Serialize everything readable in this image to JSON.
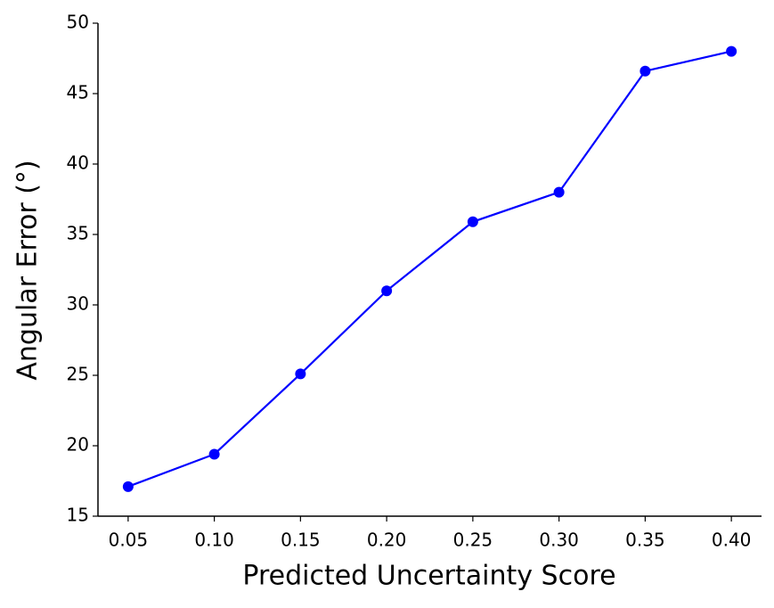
{
  "chart_data": {
    "type": "line",
    "x_label": "Predicted Uncertainty Score",
    "y_label": "Angular Error (°)",
    "x": [
      0.05,
      0.1,
      0.15,
      0.2,
      0.25,
      0.3,
      0.35,
      0.4
    ],
    "series": [
      {
        "color": "#0000ff",
        "values": [
          17.1,
          19.4,
          25.1,
          31.0,
          35.9,
          38.0,
          46.6,
          48.0
        ]
      }
    ],
    "xlim": [
      0.0325,
      0.4175
    ],
    "xticks": [
      0.05,
      {
        "value": 0.1,
        "label": "0.10"
      },
      0.15,
      {
        "value": 0.2,
        "label": "0.20"
      },
      0.25,
      {
        "value": 0.3,
        "label": "0.30"
      },
      0.35,
      {
        "value": 0.4,
        "label": "0.40"
      }
    ],
    "ylim": [
      15,
      50
    ],
    "yticks": [
      15,
      20,
      25,
      30,
      35,
      40,
      45,
      50
    ],
    "grid": false
  }
}
